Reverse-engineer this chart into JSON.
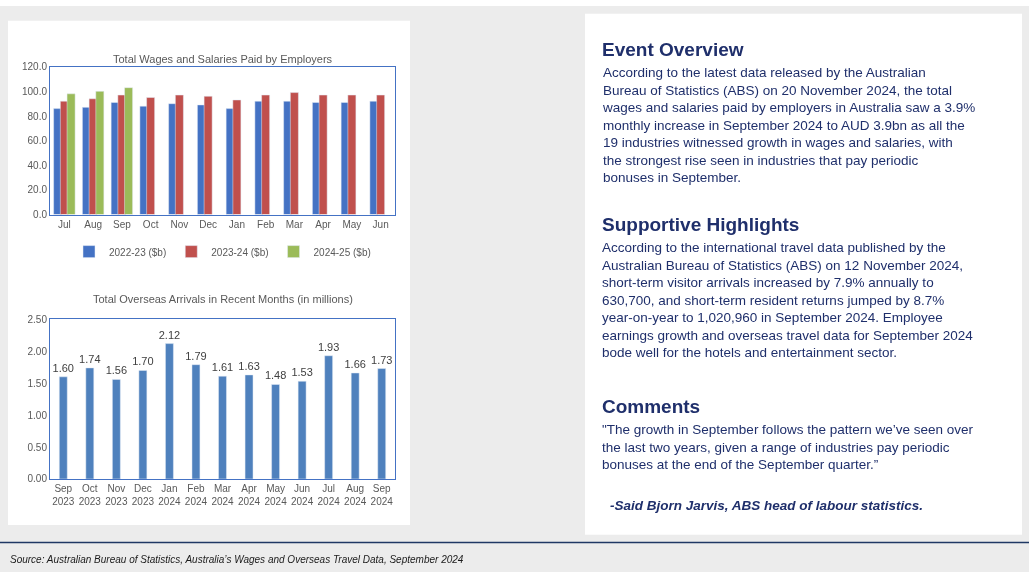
{
  "chart_data": [
    {
      "type": "bar",
      "title": "Total Wages and Salaries Paid by Employers",
      "categories": [
        "Jul",
        "Aug",
        "Sep",
        "Oct",
        "Nov",
        "Dec",
        "Jan",
        "Feb",
        "Mar",
        "Apr",
        "May",
        "Jun"
      ],
      "series": [
        {
          "name": "2022-23 ($b)",
          "color": "#4472c4",
          "values": [
            86,
            87,
            91,
            88,
            90,
            89,
            86,
            92,
            92,
            91,
            91,
            92
          ]
        },
        {
          "name": "2023-24 ($b)",
          "color": "#c0504d",
          "values": [
            92,
            94,
            97,
            95,
            97,
            96,
            93,
            97,
            99,
            97,
            97,
            97
          ]
        },
        {
          "name": "2024-25 ($b)",
          "color": "#9bbb59",
          "values": [
            98,
            100,
            103,
            null,
            null,
            null,
            null,
            null,
            null,
            null,
            null,
            null
          ]
        }
      ],
      "ylim": [
        0,
        120
      ],
      "yticks": [
        {
          "value": 0,
          "label": "0.0"
        },
        {
          "value": 20,
          "label": "20.0"
        },
        {
          "value": 40,
          "label": "40.0"
        },
        {
          "value": 60,
          "label": "60.0"
        },
        {
          "value": 80,
          "label": "80.0"
        },
        {
          "value": 100,
          "label": "100.0"
        },
        {
          "value": 120,
          "label": "120.0"
        }
      ],
      "legend": "bottom"
    },
    {
      "type": "bar",
      "title": "Total Overseas Arrivals in Recent Months (in millions)",
      "categories": [
        "Sep\n2023",
        "Oct\n2023",
        "Nov\n2023",
        "Dec\n2023",
        "Jan\n2024",
        "Feb\n2024",
        "Mar\n2024",
        "Apr\n2024",
        "May\n2024",
        "Jun\n2024",
        "Jul\n2024",
        "Aug\n2024",
        "Sep\n2024"
      ],
      "series": [
        {
          "color": "#4f81bd",
          "values": [
            1.6,
            1.74,
            1.56,
            1.7,
            2.12,
            1.79,
            1.61,
            1.63,
            1.48,
            1.53,
            1.93,
            1.66,
            1.73
          ]
        }
      ],
      "value_labels": [
        "1.60",
        "1.74",
        "1.56",
        "1.70",
        "2.12",
        "1.79",
        "1.61",
        "1.63",
        "1.48",
        "1.53",
        "1.93",
        "1.66",
        "1.73"
      ],
      "ylim": [
        0,
        2.5
      ],
      "yticks": [
        {
          "value": 0,
          "label": "0.00"
        },
        {
          "value": 0.5,
          "label": "0.50"
        },
        {
          "value": 1,
          "label": "1.00"
        },
        {
          "value": 1.5,
          "label": "1.50"
        },
        {
          "value": 2,
          "label": "2.00"
        },
        {
          "value": 2.5,
          "label": "2.50"
        }
      ],
      "legend": false
    },
    {
      "type": "other",
      "annotations": [
        "Event Overview",
        "According to the latest data released by the Australian Bureau of Statistics (ABS) on 20 November 2024, the total wages and salaries paid by employers in Australia saw a 3.9% monthly increase in September 2024 to AUD 3.9bn as all the 19 industries witnessed growth in wages and salaries, with the strongest rise seen in industries that pay periodic bonuses in September.",
        "Supportive Highlights",
        "According to the international travel data published by the Australian Bureau of Statistics (ABS) on 12 November 2024, short-term visitor arrivals increased by 7.9% annually to 630,700, and short-term resident returns jumped by 8.7% year-on-year to 1,020,960 in September 2024. Employee earnings growth and overseas travel data for September 2024 bode well for the hotels and entertainment sector.",
        "Comments",
        "\"The growth in September follows the pattern we’ve seen over the last two years, given a range of industries pay periodic bonuses at the end of the September quarter.”",
        "-Said Bjorn Jarvis, ABS head of labour statistics.",
        "Source: Australian Bureau of Statistics, Australia’s Wages and Overseas Travel Data, September 2024"
      ]
    }
  ]
}
